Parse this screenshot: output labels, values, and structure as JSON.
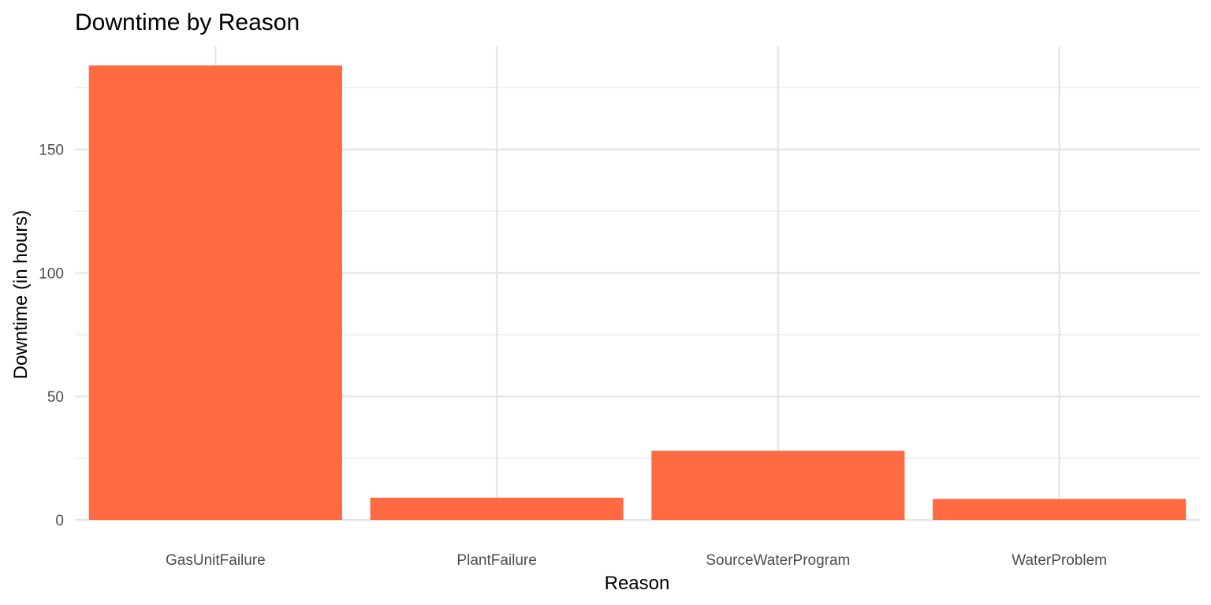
{
  "chart_data": {
    "type": "bar",
    "title": "Downtime by Reason",
    "xlabel": "Reason",
    "ylabel": "Downtime (in hours)",
    "categories": [
      "GasUnitFailure",
      "PlantFailure",
      "SourceWaterProgram",
      "WaterProblem"
    ],
    "values": [
      184,
      9,
      28,
      8.5
    ],
    "yticks": [
      0,
      50,
      100,
      150
    ],
    "ylim": [
      0,
      192
    ],
    "grid": true,
    "legend": "none",
    "bar_color": "#FF6A42"
  }
}
